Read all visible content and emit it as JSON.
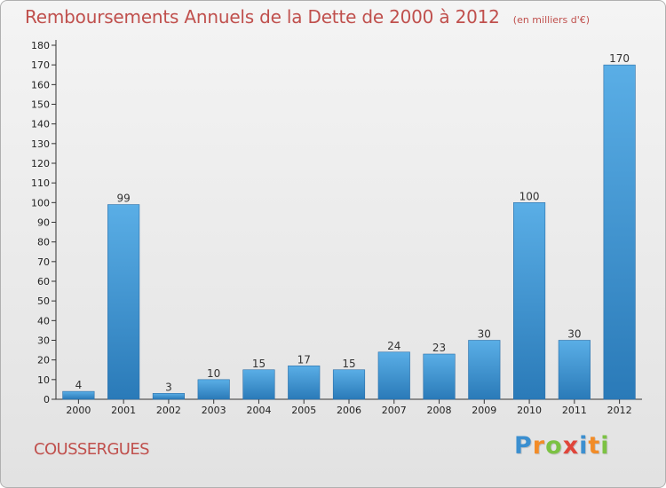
{
  "chart_data": {
    "type": "bar",
    "title": "Remboursements Annuels de la Dette de 2000 à 2012",
    "unit_note": "(en milliers d'€)",
    "categories": [
      "2000",
      "2001",
      "2002",
      "2003",
      "2004",
      "2005",
      "2006",
      "2007",
      "2008",
      "2009",
      "2010",
      "2011",
      "2012"
    ],
    "values": [
      4,
      99,
      3,
      10,
      15,
      17,
      15,
      24,
      23,
      30,
      100,
      30,
      170
    ],
    "ylim": [
      0,
      180
    ],
    "yticks": [
      0,
      10,
      20,
      30,
      40,
      50,
      60,
      70,
      80,
      90,
      100,
      110,
      120,
      130,
      140,
      150,
      160,
      170,
      180
    ],
    "grid": false,
    "legend": "none",
    "bar_color_light": "#5aaee6",
    "bar_color_dark": "#2a7ab8",
    "title_color": "#c0504d"
  },
  "footer": {
    "commune": "COUSSERGUES"
  },
  "brand": {
    "letters": [
      "P",
      "r",
      "o",
      "x",
      "i",
      "t",
      "i"
    ],
    "colors": [
      "#3b8fd0",
      "#f28c28",
      "#7cc243",
      "#e0453a",
      "#3b8fd0",
      "#f28c28",
      "#7cc243"
    ]
  }
}
